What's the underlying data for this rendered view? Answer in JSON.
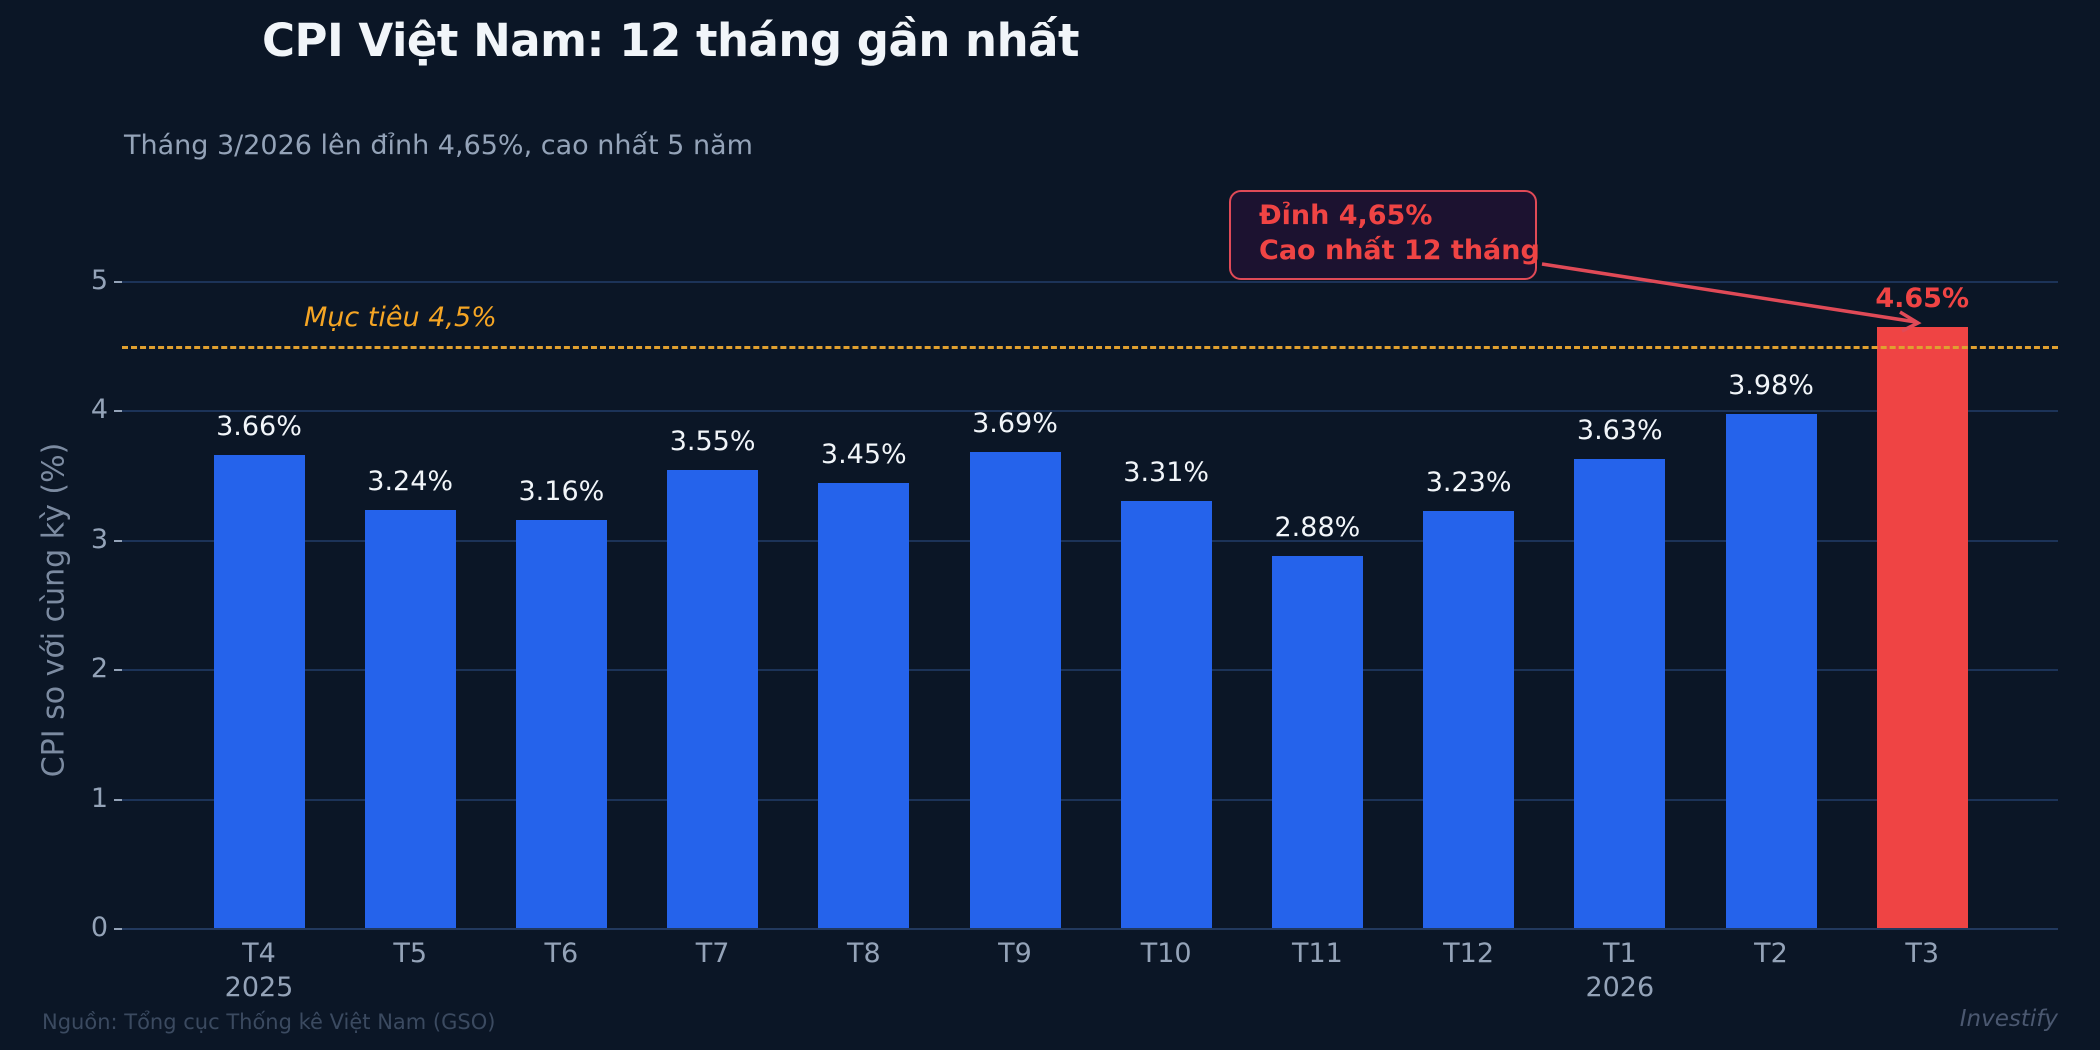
{
  "title": "CPI Việt Nam: 12 tháng gần nhất",
  "subtitle": "Tháng 3/2026 lên đỉnh 4,65%, cao nhất 5 năm",
  "y_axis_label": "CPI so với cùng kỳ (%)",
  "y_ticks": [
    "0",
    "1",
    "2",
    "3",
    "4",
    "5"
  ],
  "target": {
    "label": "Mục tiêu 4,5%",
    "value": 4.5,
    "color": "#f5a524"
  },
  "callout": {
    "line1": "Đỉnh 4,65%",
    "line2": "Cao nhất 12 tháng",
    "color": "#ef4444"
  },
  "footer": {
    "source": "Nguồn: Tổng cục Thống kê Việt Nam (GSO)",
    "brand": "Investify"
  },
  "colors": {
    "bar": "#2563eb",
    "highlight": "#ef4444",
    "background": "#0b1626"
  },
  "bars": [
    {
      "x": "T4\n2025",
      "value": 3.66,
      "label": "3.66%"
    },
    {
      "x": "T5",
      "value": 3.24,
      "label": "3.24%"
    },
    {
      "x": "T6",
      "value": 3.16,
      "label": "3.16%"
    },
    {
      "x": "T7",
      "value": 3.55,
      "label": "3.55%"
    },
    {
      "x": "T8",
      "value": 3.45,
      "label": "3.45%"
    },
    {
      "x": "T9",
      "value": 3.69,
      "label": "3.69%"
    },
    {
      "x": "T10",
      "value": 3.31,
      "label": "3.31%"
    },
    {
      "x": "T11",
      "value": 2.88,
      "label": "2.88%"
    },
    {
      "x": "T12",
      "value": 3.23,
      "label": "3.23%"
    },
    {
      "x": "T1\n2026",
      "value": 3.63,
      "label": "3.63%"
    },
    {
      "x": "T2",
      "value": 3.98,
      "label": "3.98%"
    },
    {
      "x": "T3",
      "value": 4.65,
      "label": "4.65%",
      "highlight": true
    }
  ],
  "chart_data": {
    "type": "bar",
    "title": "CPI Việt Nam: 12 tháng gần nhất",
    "subtitle": "Tháng 3/2026 lên đỉnh 4,65%, cao nhất 5 năm",
    "categories": [
      "T4 2025",
      "T5",
      "T6",
      "T7",
      "T8",
      "T9",
      "T10",
      "T11",
      "T12",
      "T1 2026",
      "T2",
      "T3"
    ],
    "values": [
      3.66,
      3.24,
      3.16,
      3.55,
      3.45,
      3.69,
      3.31,
      2.88,
      3.23,
      3.63,
      3.98,
      4.65
    ],
    "data_labels": [
      "3.66%",
      "3.24%",
      "3.16%",
      "3.55%",
      "3.45%",
      "3.69%",
      "3.31%",
      "2.88%",
      "3.23%",
      "3.63%",
      "3.98%",
      "4.65%"
    ],
    "xlabel": "",
    "ylabel": "CPI so với cùng kỳ (%)",
    "ylim": [
      0,
      5.5
    ],
    "yticks": [
      0,
      1,
      2,
      3,
      4,
      5
    ],
    "grid": "horizontal",
    "highlight": {
      "category": "T3",
      "color": "#ef4444"
    },
    "reference_lines": [
      {
        "y": 4.5,
        "label": "Mục tiêu 4,5%",
        "style": "dashed",
        "color": "#f5a524"
      }
    ],
    "annotations": [
      {
        "text": "Đỉnh 4,65%\nCao nhất 12 tháng",
        "target": "T3",
        "arrow": true
      }
    ],
    "legend": null
  }
}
